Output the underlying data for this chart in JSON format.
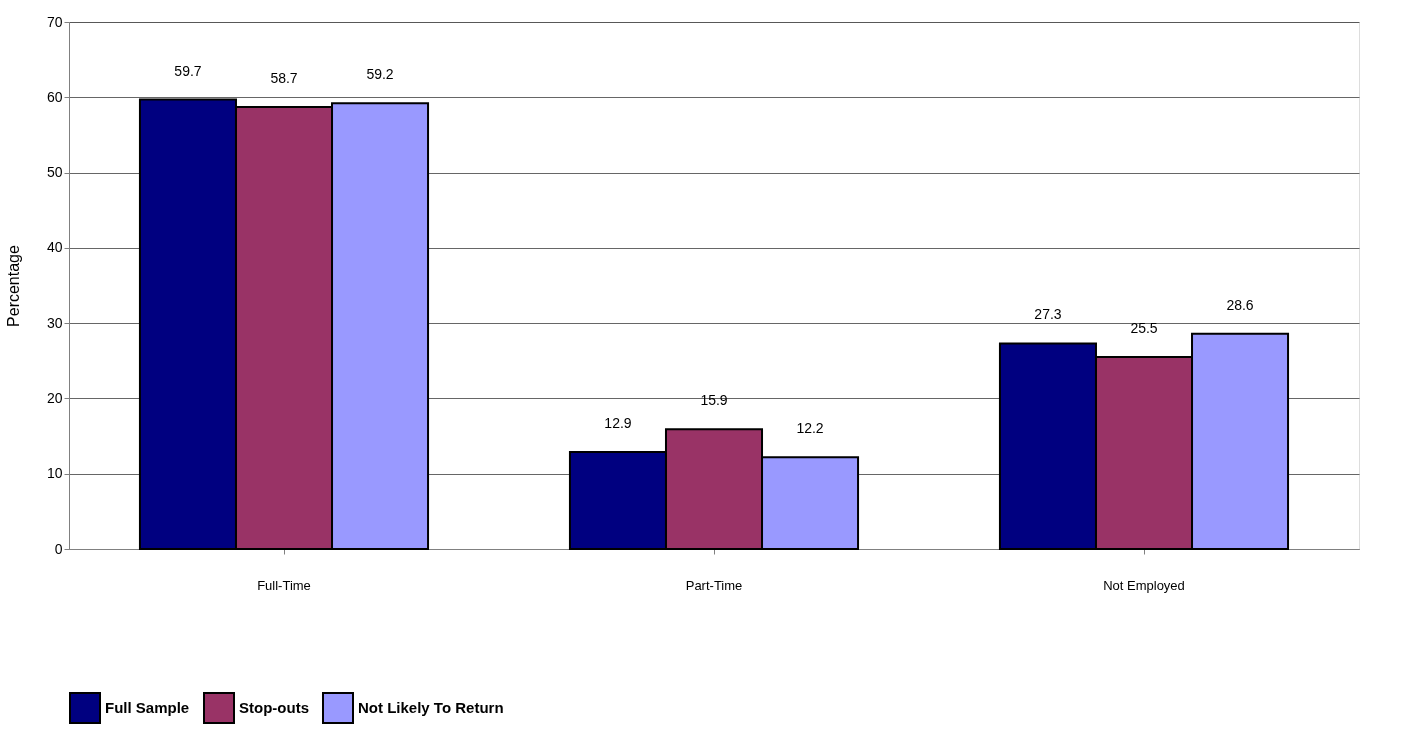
{
  "chart_data": {
    "type": "bar",
    "ylabel": "Percentage",
    "categories": [
      "Full-Time",
      "Part-Time",
      "Not Employed"
    ],
    "series": [
      {
        "name": "Full Sample",
        "color": "#000080",
        "values": [
          59.7,
          12.9,
          27.3
        ]
      },
      {
        "name": "Stop-outs",
        "color": "#993366",
        "values": [
          58.7,
          15.9,
          25.5
        ]
      },
      {
        "name": "Not Likely To Return",
        "color": "#9999ff",
        "values": [
          59.2,
          12.2,
          28.6
        ]
      }
    ],
    "ylim": [
      0,
      70
    ],
    "yticks": [
      0,
      10,
      20,
      30,
      40,
      50,
      60,
      70
    ],
    "grid": "y",
    "legend": "bottom",
    "data_labels": true
  }
}
